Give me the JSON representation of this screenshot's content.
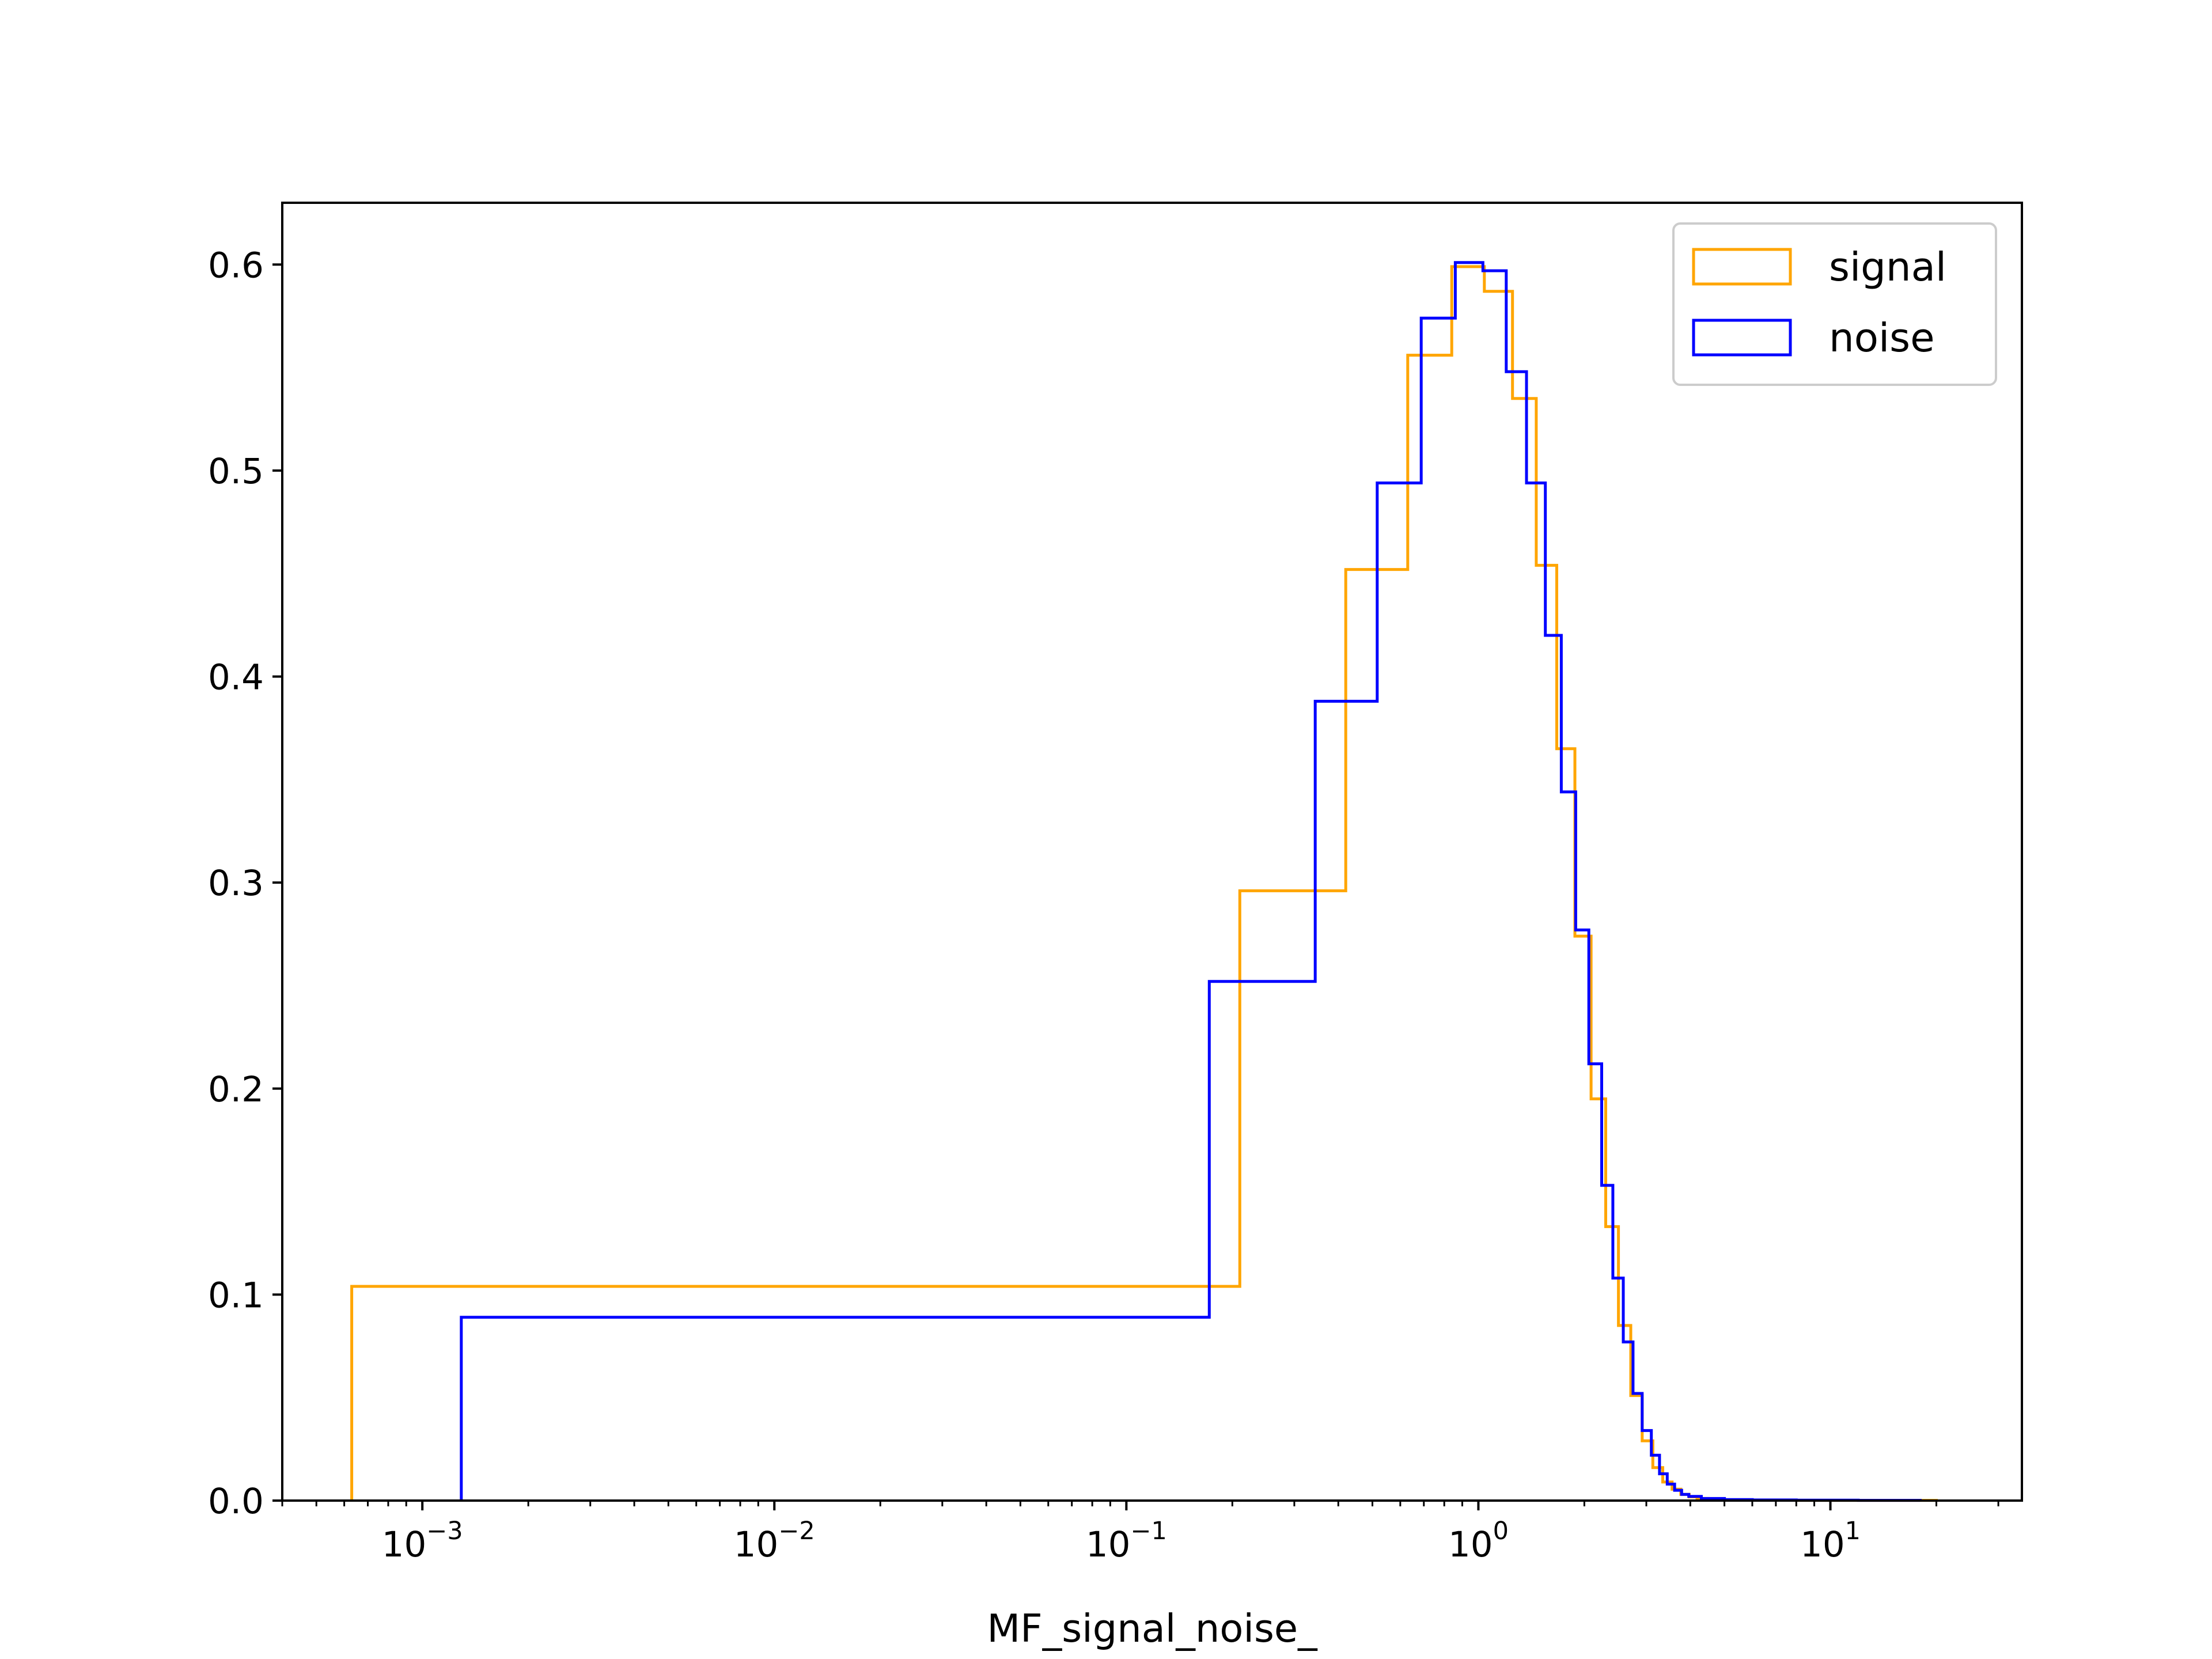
{
  "chart_data": {
    "type": "line",
    "style": "step histogram",
    "xscale": "log",
    "xlabel": "MF_signal_noise_",
    "ylabel": "",
    "title": "",
    "xlim": [
      0.0004,
      35
    ],
    "ylim": [
      0.0,
      0.63
    ],
    "x_ticks": [
      0.001,
      0.01,
      0.1,
      1,
      10
    ],
    "x_tick_labels": [
      {
        "base": "10",
        "exp": "−3"
      },
      {
        "base": "10",
        "exp": "−2"
      },
      {
        "base": "10",
        "exp": "−1"
      },
      {
        "base": "10",
        "exp": "0"
      },
      {
        "base": "10",
        "exp": "1"
      }
    ],
    "y_ticks": [
      0.0,
      0.1,
      0.2,
      0.3,
      0.4,
      0.5,
      0.6
    ],
    "y_tick_labels": [
      "0.0",
      "0.1",
      "0.2",
      "0.3",
      "0.4",
      "0.5",
      "0.6"
    ],
    "grid": false,
    "legend": {
      "position": "top-right",
      "entries": [
        {
          "label": "signal",
          "color": "#ffa500"
        },
        {
          "label": "noise",
          "color": "#0000ff"
        }
      ]
    },
    "series": [
      {
        "name": "signal",
        "color": "#ffa500",
        "edges": [
          0.00063,
          0.21,
          0.42,
          0.63,
          0.84,
          1.04,
          1.25,
          1.46,
          1.67,
          1.88,
          2.09,
          2.3,
          2.5,
          2.71,
          2.92,
          3.13,
          3.34,
          3.55,
          3.76,
          3.97,
          4.18,
          4.5,
          5.0,
          6.0,
          8.0,
          12.0,
          20.0
        ],
        "values": [
          0.104,
          0.296,
          0.452,
          0.556,
          0.599,
          0.587,
          0.535,
          0.454,
          0.365,
          0.274,
          0.195,
          0.133,
          0.085,
          0.051,
          0.029,
          0.016,
          0.009,
          0.0055,
          0.003,
          0.0018,
          0.001,
          0.0006,
          0.0003,
          0.0002,
          0.0001,
          0.0001
        ]
      },
      {
        "name": "noise",
        "color": "#0000ff",
        "edges": [
          0.00129,
          0.172,
          0.344,
          0.516,
          0.688,
          0.86,
          1.03,
          1.2,
          1.37,
          1.55,
          1.72,
          1.89,
          2.06,
          2.24,
          2.41,
          2.58,
          2.75,
          2.92,
          3.1,
          3.27,
          3.44,
          3.61,
          3.78,
          3.96,
          4.3,
          5.0,
          6.0,
          8.0,
          12.0,
          18.0
        ],
        "values": [
          0.089,
          0.252,
          0.388,
          0.494,
          0.574,
          0.601,
          0.597,
          0.548,
          0.494,
          0.42,
          0.344,
          0.277,
          0.212,
          0.153,
          0.108,
          0.077,
          0.052,
          0.034,
          0.022,
          0.013,
          0.008,
          0.005,
          0.003,
          0.002,
          0.001,
          0.0005,
          0.0003,
          0.0002,
          0.0001
        ]
      }
    ]
  }
}
